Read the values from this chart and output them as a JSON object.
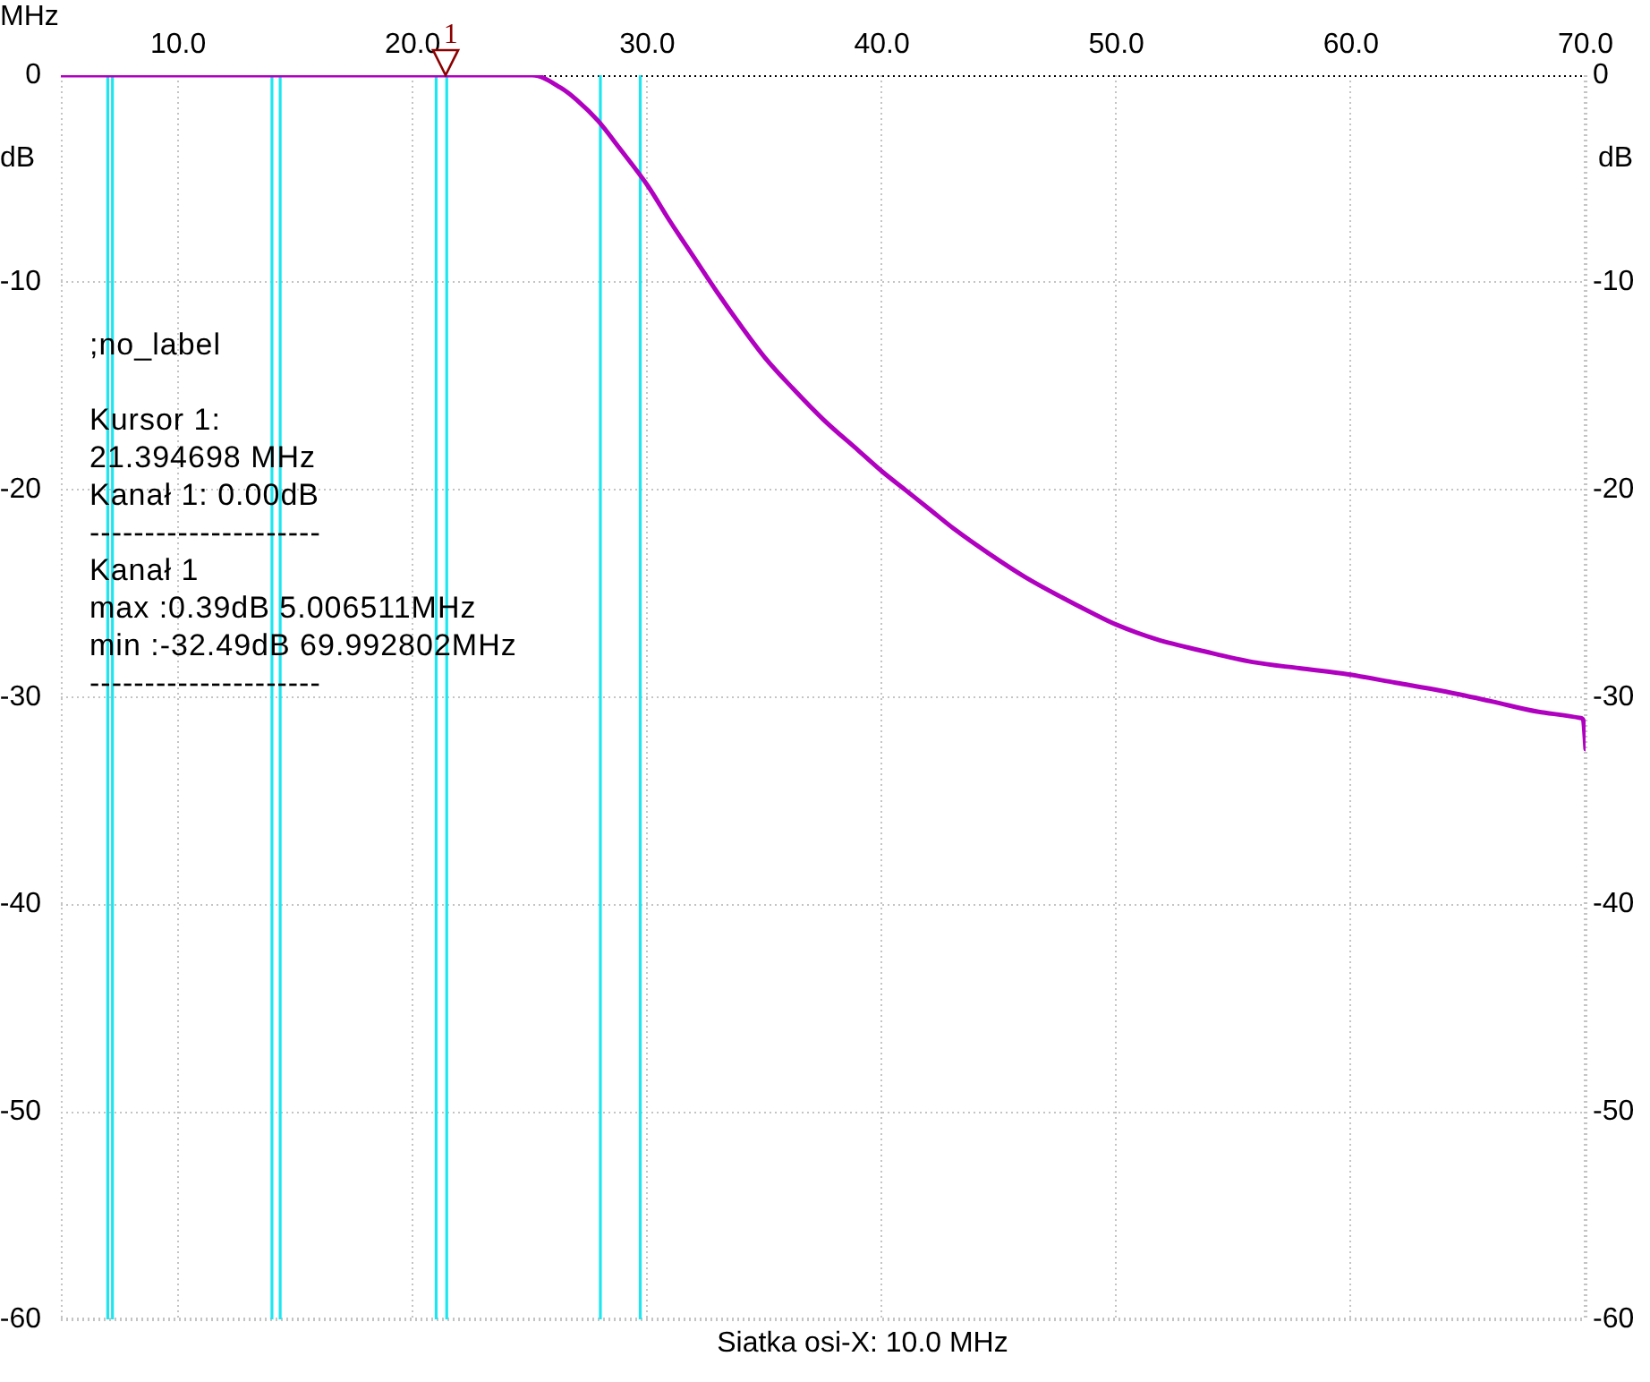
{
  "chart_data": {
    "type": "line",
    "xlabel": "MHz",
    "ylabel": "dB",
    "y2label": "dB",
    "x": [
      5,
      10,
      15,
      20,
      25.1,
      26.3,
      27,
      27.9,
      28.8,
      30,
      31,
      32,
      33,
      34,
      35,
      36.2,
      37.5,
      39,
      40,
      41,
      42,
      43.1,
      44.6,
      46.1,
      47.7,
      48.9,
      50,
      51.7,
      53.8,
      55.8,
      57.8,
      59.9,
      61.9,
      63.9,
      66,
      68,
      69.8,
      69.9,
      70
    ],
    "series": [
      {
        "color": "#b000c0",
        "values": [
          0,
          0,
          0,
          0,
          0,
          -0.6,
          -1.2,
          -2.2,
          -3.5,
          -5.3,
          -7.1,
          -8.8,
          -10.5,
          -12.1,
          -13.6,
          -15.1,
          -16.6,
          -18.1,
          -19.1,
          -20.0,
          -20.9,
          -21.9,
          -23.1,
          -24.2,
          -25.2,
          -25.9,
          -26.5,
          -27.2,
          -27.8,
          -28.3,
          -28.6,
          -28.9,
          -29.3,
          -29.7,
          -30.2,
          -30.7,
          -31.0,
          -31.1,
          -32.5
        ]
      }
    ],
    "xlim": [
      5,
      70
    ],
    "xticks": [
      {
        "value": 10,
        "label": "10.0"
      },
      {
        "value": 20,
        "label": "20.0"
      },
      {
        "value": 30,
        "label": "30.0"
      },
      {
        "value": 40,
        "label": "40.0"
      },
      {
        "value": 50,
        "label": "50.0"
      },
      {
        "value": 60,
        "label": "60.0"
      },
      {
        "value": 70,
        "label": "70.0"
      }
    ],
    "ylim": [
      -60,
      0
    ],
    "yticks": [
      -60,
      -50,
      -40,
      -30,
      -20,
      -10,
      0
    ],
    "y2lim": [
      -60,
      0
    ],
    "y2ticks": [
      -60,
      -50,
      -40,
      -30,
      -20,
      -10,
      0
    ],
    "grid": true,
    "marker": "none",
    "line_style": "solid",
    "ref_lines": [
      {
        "axis": "x",
        "value": 7.0,
        "color": "#1ee6f0"
      },
      {
        "axis": "x",
        "value": 7.2,
        "color": "#1ee6f0"
      },
      {
        "axis": "x",
        "value": 14.0,
        "color": "#1ee6f0"
      },
      {
        "axis": "x",
        "value": 14.35,
        "color": "#1ee6f0"
      },
      {
        "axis": "x",
        "value": 21.0,
        "color": "#1ee6f0"
      },
      {
        "axis": "x",
        "value": 21.45,
        "color": "#1ee6f0"
      },
      {
        "axis": "x",
        "value": 28.0,
        "color": "#1ee6f0"
      },
      {
        "axis": "x",
        "value": 29.7,
        "color": "#1ee6f0"
      }
    ],
    "annotations": [
      {
        "text": "1",
        "x": 21.394698,
        "y": 0
      },
      ";no_label",
      "Kursor 1:",
      "21.394698 MHz",
      "Kanał 1: 0.00dB",
      "---------------------",
      "Kanał 1",
      "max :0.39dB 5.006511MHz",
      "min :-32.49dB 69.992802MHz",
      "---------------------",
      "Siatka osi-X: 10.0 MHz"
    ]
  }
}
